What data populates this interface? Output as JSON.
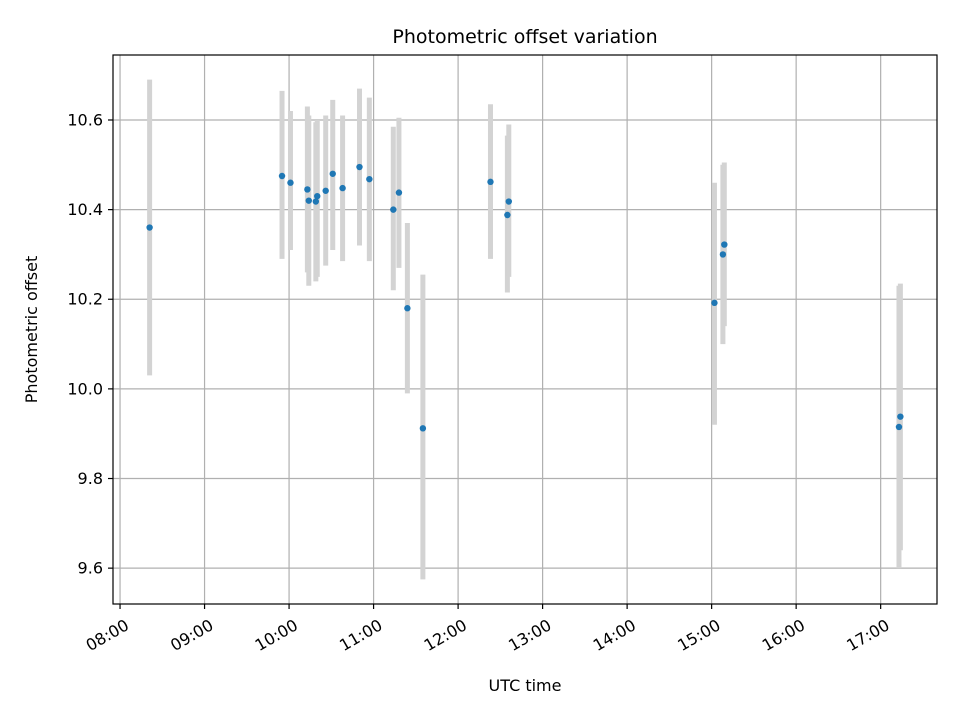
{
  "chart_data": {
    "type": "scatter",
    "title": "Photometric offset variation",
    "xlabel": "UTC time",
    "ylabel": "Photometric offset",
    "x_ticks": [
      "08:00",
      "09:00",
      "10:00",
      "11:00",
      "12:00",
      "13:00",
      "14:00",
      "15:00",
      "16:00",
      "17:00"
    ],
    "y_ticks": [
      "9.6",
      "9.8",
      "10.0",
      "10.2",
      "10.4",
      "10.6"
    ],
    "xlim": [
      "07:55",
      "17:40"
    ],
    "ylim": [
      9.52,
      10.745
    ],
    "grid": true,
    "point_color": "#1f77b4",
    "errorbar_color": "#d3d3d3",
    "points": [
      {
        "t": "08:21",
        "y": 10.36,
        "lo": 10.03,
        "hi": 10.69
      },
      {
        "t": "09:55",
        "y": 10.475,
        "lo": 10.29,
        "hi": 10.665
      },
      {
        "t": "10:01",
        "y": 10.46,
        "lo": 10.31,
        "hi": 10.62
      },
      {
        "t": "10:13",
        "y": 10.445,
        "lo": 10.26,
        "hi": 10.63
      },
      {
        "t": "10:14",
        "y": 10.42,
        "lo": 10.23,
        "hi": 10.61
      },
      {
        "t": "10:19",
        "y": 10.418,
        "lo": 10.24,
        "hi": 10.595
      },
      {
        "t": "10:20",
        "y": 10.43,
        "lo": 10.25,
        "hi": 10.6
      },
      {
        "t": "10:26",
        "y": 10.442,
        "lo": 10.275,
        "hi": 10.61
      },
      {
        "t": "10:31",
        "y": 10.48,
        "lo": 10.31,
        "hi": 10.645
      },
      {
        "t": "10:38",
        "y": 10.448,
        "lo": 10.285,
        "hi": 10.61
      },
      {
        "t": "10:50",
        "y": 10.495,
        "lo": 10.32,
        "hi": 10.67
      },
      {
        "t": "10:57",
        "y": 10.468,
        "lo": 10.285,
        "hi": 10.65
      },
      {
        "t": "11:14",
        "y": 10.4,
        "lo": 10.22,
        "hi": 10.585
      },
      {
        "t": "11:18",
        "y": 10.438,
        "lo": 10.27,
        "hi": 10.605
      },
      {
        "t": "11:24",
        "y": 10.18,
        "lo": 9.99,
        "hi": 10.37
      },
      {
        "t": "11:35",
        "y": 9.912,
        "lo": 9.575,
        "hi": 10.255
      },
      {
        "t": "12:23",
        "y": 10.462,
        "lo": 10.29,
        "hi": 10.635
      },
      {
        "t": "12:35",
        "y": 10.388,
        "lo": 10.215,
        "hi": 10.565
      },
      {
        "t": "12:36",
        "y": 10.418,
        "lo": 10.25,
        "hi": 10.59
      },
      {
        "t": "15:02",
        "y": 10.192,
        "lo": 9.92,
        "hi": 10.46
      },
      {
        "t": "15:08",
        "y": 10.3,
        "lo": 10.1,
        "hi": 10.5
      },
      {
        "t": "15:09",
        "y": 10.322,
        "lo": 10.14,
        "hi": 10.505
      },
      {
        "t": "17:13",
        "y": 9.915,
        "lo": 9.6,
        "hi": 10.23
      },
      {
        "t": "17:14",
        "y": 9.938,
        "lo": 9.64,
        "hi": 10.235
      }
    ]
  }
}
